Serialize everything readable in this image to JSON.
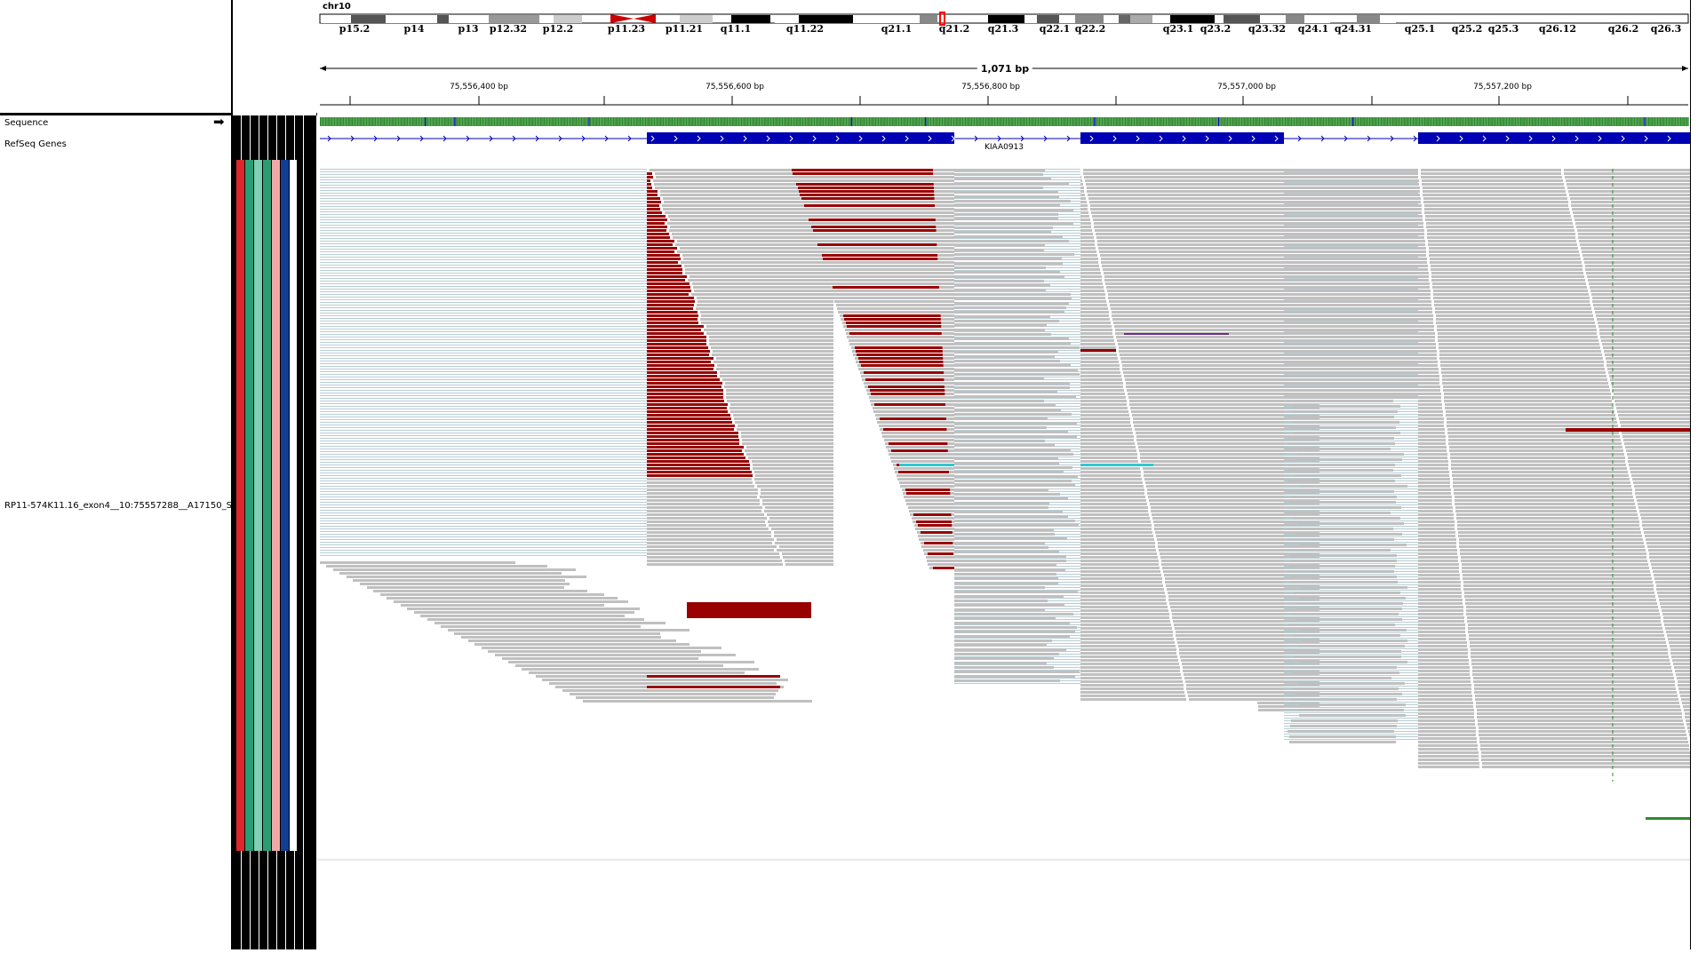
{
  "chromosome": {
    "name": "chr10",
    "bands": [
      "p15.2",
      "p14",
      "p13",
      "p12.32",
      "p12.2",
      "p11.23",
      "p11.21",
      "q11.1",
      "q11.22",
      "q21.1",
      "q21.2",
      "q21.3",
      "q22.1",
      "q22.2",
      "q23.1",
      "q23.2",
      "q23.32",
      "q24.1",
      "q24.31",
      "q25.1",
      "q25.2",
      "q25.3",
      "q26.12",
      "q26.2",
      "q26.3"
    ]
  },
  "ruler": {
    "span_label": "1,071 bp",
    "ticks": [
      "75,556,400 bp",
      "75,556,600 bp",
      "75,556,800 bp",
      "75,557,000 bp",
      "75,557,200 bp"
    ]
  },
  "tracks": {
    "sequence_label": "Sequence",
    "refseq_label": "RefSeq Genes",
    "gene_name": "KIAA0913",
    "alignment_label": "RP11-574K11.16_exon4__10:75557288__A17150_S"
  },
  "icons": {
    "strand_arrow": "arrow-right-icon"
  },
  "colors": {
    "read_gray": "#c0c0c0",
    "read_red": "#990000",
    "exon_blue": "#0000b4",
    "insert_cyan": "#30c8d0",
    "attr_red": "#e0262a",
    "attr_green": "#2a9d75",
    "attr_lightgreen": "#7fd0b5",
    "attr_pink": "#f0a8a8",
    "attr_blue": "#123e94"
  }
}
